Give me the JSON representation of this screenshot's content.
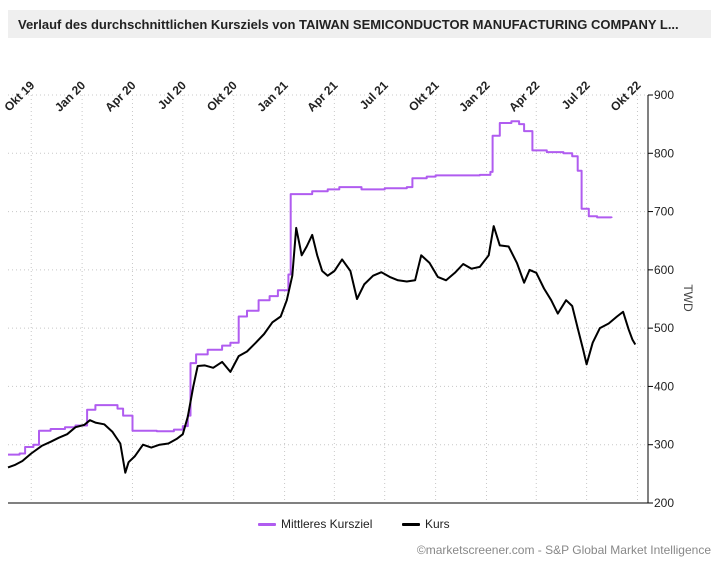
{
  "title": "Verlauf des durchschnittlichen Kursziels von TAIWAN SEMICONDUCTOR MANUFACTURING COMPANY L...",
  "credit": "©marketscreener.com - S&P Global Market Intelligence",
  "colors": {
    "target": "#b05cf0",
    "price": "#000000",
    "grid": "#c8c8c8"
  },
  "chart_data": {
    "type": "line",
    "title": "Verlauf des durchschnittlichen Kursziels von TAIWAN SEMICONDUCTOR MANUFACTURING COMPANY L...",
    "ylabel": "TWD",
    "ylim": [
      200,
      900
    ],
    "yticks": [
      200,
      300,
      400,
      500,
      600,
      700,
      800,
      900
    ],
    "xlim": [
      "2019-08-20",
      "2022-10-20"
    ],
    "xticks": [
      {
        "date": "2019-10-01",
        "label": "Okt 19"
      },
      {
        "date": "2020-01-01",
        "label": "Jan 20"
      },
      {
        "date": "2020-04-01",
        "label": "Apr 20"
      },
      {
        "date": "2020-07-01",
        "label": "Jul 20"
      },
      {
        "date": "2020-10-01",
        "label": "Okt 20"
      },
      {
        "date": "2021-01-01",
        "label": "Jan 21"
      },
      {
        "date": "2021-04-01",
        "label": "Apr 21"
      },
      {
        "date": "2021-07-01",
        "label": "Jul 21"
      },
      {
        "date": "2021-10-01",
        "label": "Okt 21"
      },
      {
        "date": "2022-01-01",
        "label": "Jan 22"
      },
      {
        "date": "2022-04-01",
        "label": "Apr 22"
      },
      {
        "date": "2022-07-01",
        "label": "Jul 22"
      },
      {
        "date": "2022-10-01",
        "label": "Okt 22"
      }
    ],
    "grid": true,
    "legend": "bottom",
    "series": [
      {
        "name": "Mittleres Kursziel",
        "color": "#b05cf0",
        "points": [
          [
            "2019-08-20",
            283
          ],
          [
            "2019-09-10",
            285
          ],
          [
            "2019-09-20",
            296
          ],
          [
            "2019-10-05",
            300
          ],
          [
            "2019-10-15",
            324
          ],
          [
            "2019-11-05",
            327
          ],
          [
            "2019-12-01",
            330
          ],
          [
            "2019-12-20",
            333
          ],
          [
            "2020-01-10",
            360
          ],
          [
            "2020-01-25",
            368
          ],
          [
            "2020-02-20",
            368
          ],
          [
            "2020-03-05",
            362
          ],
          [
            "2020-03-15",
            350
          ],
          [
            "2020-04-01",
            324
          ],
          [
            "2020-05-15",
            323
          ],
          [
            "2020-06-15",
            326
          ],
          [
            "2020-07-01",
            332
          ],
          [
            "2020-07-10",
            350
          ],
          [
            "2020-07-15",
            440
          ],
          [
            "2020-07-25",
            455
          ],
          [
            "2020-08-15",
            463
          ],
          [
            "2020-09-10",
            470
          ],
          [
            "2020-09-25",
            475
          ],
          [
            "2020-10-10",
            520
          ],
          [
            "2020-10-25",
            530
          ],
          [
            "2020-11-15",
            548
          ],
          [
            "2020-12-05",
            555
          ],
          [
            "2020-12-20",
            565
          ],
          [
            "2021-01-08",
            592
          ],
          [
            "2021-01-12",
            730
          ],
          [
            "2021-02-20",
            735
          ],
          [
            "2021-03-20",
            738
          ],
          [
            "2021-04-10",
            742
          ],
          [
            "2021-05-20",
            738
          ],
          [
            "2021-07-01",
            740
          ],
          [
            "2021-08-10",
            742
          ],
          [
            "2021-08-20",
            757
          ],
          [
            "2021-09-15",
            760
          ],
          [
            "2021-10-01",
            762
          ],
          [
            "2021-11-15",
            762
          ],
          [
            "2021-12-20",
            763
          ],
          [
            "2022-01-08",
            768
          ],
          [
            "2022-01-12",
            830
          ],
          [
            "2022-01-25",
            852
          ],
          [
            "2022-02-15",
            855
          ],
          [
            "2022-03-01",
            850
          ],
          [
            "2022-03-10",
            838
          ],
          [
            "2022-03-25",
            805
          ],
          [
            "2022-04-20",
            802
          ],
          [
            "2022-05-20",
            800
          ],
          [
            "2022-06-05",
            795
          ],
          [
            "2022-06-15",
            770
          ],
          [
            "2022-06-22",
            705
          ],
          [
            "2022-07-05",
            692
          ],
          [
            "2022-07-20",
            690
          ],
          [
            "2022-08-05",
            690
          ],
          [
            "2022-08-15",
            689
          ]
        ]
      },
      {
        "name": "Kurs",
        "color": "#000000",
        "points": [
          [
            "2019-08-20",
            261
          ],
          [
            "2019-09-01",
            265
          ],
          [
            "2019-09-15",
            272
          ],
          [
            "2019-10-01",
            285
          ],
          [
            "2019-10-20",
            298
          ],
          [
            "2019-11-05",
            305
          ],
          [
            "2019-11-20",
            312
          ],
          [
            "2019-12-05",
            318
          ],
          [
            "2019-12-20",
            330
          ],
          [
            "2020-01-05",
            334
          ],
          [
            "2020-01-15",
            342
          ],
          [
            "2020-01-25",
            338
          ],
          [
            "2020-02-10",
            335
          ],
          [
            "2020-02-25",
            322
          ],
          [
            "2020-03-10",
            302
          ],
          [
            "2020-03-19",
            252
          ],
          [
            "2020-03-25",
            270
          ],
          [
            "2020-04-05",
            280
          ],
          [
            "2020-04-20",
            300
          ],
          [
            "2020-05-05",
            295
          ],
          [
            "2020-05-20",
            300
          ],
          [
            "2020-06-05",
            302
          ],
          [
            "2020-06-20",
            310
          ],
          [
            "2020-07-01",
            318
          ],
          [
            "2020-07-10",
            348
          ],
          [
            "2020-07-20",
            400
          ],
          [
            "2020-07-28",
            435
          ],
          [
            "2020-08-10",
            436
          ],
          [
            "2020-08-25",
            432
          ],
          [
            "2020-09-10",
            442
          ],
          [
            "2020-09-25",
            425
          ],
          [
            "2020-10-10",
            452
          ],
          [
            "2020-10-25",
            460
          ],
          [
            "2020-11-10",
            475
          ],
          [
            "2020-11-25",
            490
          ],
          [
            "2020-12-10",
            510
          ],
          [
            "2020-12-25",
            520
          ],
          [
            "2021-01-05",
            548
          ],
          [
            "2021-01-15",
            590
          ],
          [
            "2021-01-22",
            672
          ],
          [
            "2021-02-01",
            625
          ],
          [
            "2021-02-10",
            640
          ],
          [
            "2021-02-20",
            660
          ],
          [
            "2021-03-01",
            625
          ],
          [
            "2021-03-10",
            598
          ],
          [
            "2021-03-20",
            590
          ],
          [
            "2021-04-01",
            598
          ],
          [
            "2021-04-15",
            618
          ],
          [
            "2021-04-30",
            598
          ],
          [
            "2021-05-12",
            550
          ],
          [
            "2021-05-25",
            575
          ],
          [
            "2021-06-10",
            590
          ],
          [
            "2021-06-25",
            596
          ],
          [
            "2021-07-10",
            588
          ],
          [
            "2021-07-25",
            582
          ],
          [
            "2021-08-10",
            580
          ],
          [
            "2021-08-25",
            582
          ],
          [
            "2021-09-05",
            625
          ],
          [
            "2021-09-20",
            612
          ],
          [
            "2021-10-05",
            588
          ],
          [
            "2021-10-20",
            582
          ],
          [
            "2021-11-05",
            595
          ],
          [
            "2021-11-20",
            610
          ],
          [
            "2021-12-05",
            602
          ],
          [
            "2021-12-20",
            605
          ],
          [
            "2022-01-05",
            625
          ],
          [
            "2022-01-14",
            675
          ],
          [
            "2022-01-25",
            642
          ],
          [
            "2022-02-10",
            640
          ],
          [
            "2022-02-25",
            612
          ],
          [
            "2022-03-10",
            578
          ],
          [
            "2022-03-20",
            600
          ],
          [
            "2022-04-01",
            595
          ],
          [
            "2022-04-15",
            568
          ],
          [
            "2022-04-28",
            548
          ],
          [
            "2022-05-10",
            525
          ],
          [
            "2022-05-25",
            548
          ],
          [
            "2022-06-05",
            538
          ],
          [
            "2022-06-15",
            500
          ],
          [
            "2022-06-25",
            462
          ],
          [
            "2022-07-01",
            438
          ],
          [
            "2022-07-12",
            475
          ],
          [
            "2022-07-25",
            500
          ],
          [
            "2022-08-10",
            508
          ],
          [
            "2022-08-25",
            520
          ],
          [
            "2022-09-05",
            528
          ],
          [
            "2022-09-15",
            498
          ],
          [
            "2022-09-22",
            480
          ],
          [
            "2022-09-27",
            472
          ]
        ]
      }
    ]
  }
}
